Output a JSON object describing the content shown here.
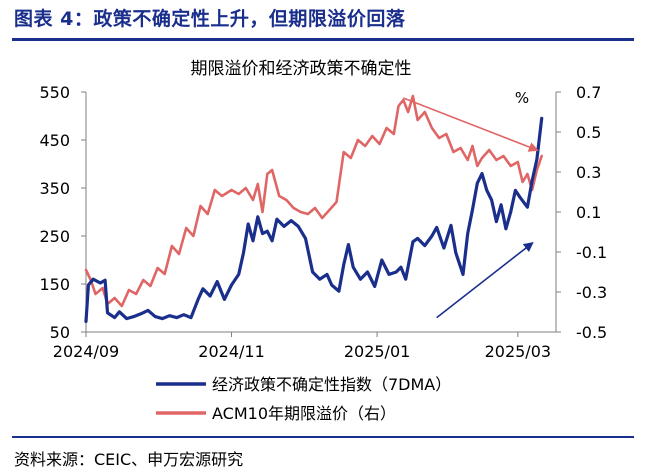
{
  "figure_title": "图表 4：政策不确定性上升，但期限溢价回落",
  "source_note": "资料来源：CEIC、申万宏源研究",
  "colors": {
    "title": "#1a2f8c",
    "series_epu": "#1a2f8c",
    "series_acm": "#e06666",
    "axis": "#7f7f7f"
  },
  "chart_data": {
    "type": "line",
    "title": "期限溢价和经济政策不确定性",
    "y_right_unit": "%",
    "x_ticks": [
      "2024/09",
      "2024/11",
      "2025/01",
      "2025/03"
    ],
    "y_left": {
      "ticks": [
        550,
        450,
        350,
        250,
        150,
        50
      ],
      "lim": [
        50,
        550
      ]
    },
    "y_right": {
      "ticks": [
        "0.7",
        "0.5",
        "0.3",
        "0.1",
        "-0.1",
        "-0.3",
        "-0.5"
      ],
      "lim": [
        -0.5,
        0.7
      ]
    },
    "series": [
      {
        "name": "经济政策不确定性指数（7DMA）",
        "axis": "left",
        "points": [
          [
            "2024-09-01",
            72
          ],
          [
            "2024-09-02",
            148
          ],
          [
            "2024-09-04",
            160
          ],
          [
            "2024-09-07",
            152
          ],
          [
            "2024-09-09",
            158
          ],
          [
            "2024-09-10",
            90
          ],
          [
            "2024-09-13",
            80
          ],
          [
            "2024-09-15",
            92
          ],
          [
            "2024-09-18",
            78
          ],
          [
            "2024-09-21",
            82
          ],
          [
            "2024-09-24",
            88
          ],
          [
            "2024-09-27",
            95
          ],
          [
            "2024-09-30",
            82
          ],
          [
            "2024-10-03",
            78
          ],
          [
            "2024-10-06",
            84
          ],
          [
            "2024-10-09",
            80
          ],
          [
            "2024-10-12",
            86
          ],
          [
            "2024-10-15",
            80
          ],
          [
            "2024-10-18",
            118
          ],
          [
            "2024-10-20",
            140
          ],
          [
            "2024-10-23",
            125
          ],
          [
            "2024-10-26",
            155
          ],
          [
            "2024-10-29",
            118
          ],
          [
            "2024-11-01",
            148
          ],
          [
            "2024-11-04",
            170
          ],
          [
            "2024-11-06",
            215
          ],
          [
            "2024-11-08",
            275
          ],
          [
            "2024-11-10",
            240
          ],
          [
            "2024-11-12",
            290
          ],
          [
            "2024-11-14",
            255
          ],
          [
            "2024-11-16",
            260
          ],
          [
            "2024-11-18",
            240
          ],
          [
            "2024-11-20",
            285
          ],
          [
            "2024-11-23",
            270
          ],
          [
            "2024-11-26",
            282
          ],
          [
            "2024-11-29",
            270
          ],
          [
            "2024-12-02",
            245
          ],
          [
            "2024-12-05",
            175
          ],
          [
            "2024-12-08",
            160
          ],
          [
            "2024-12-11",
            170
          ],
          [
            "2024-12-13",
            148
          ],
          [
            "2024-12-16",
            135
          ],
          [
            "2024-12-18",
            190
          ],
          [
            "2024-12-20",
            232
          ],
          [
            "2024-12-22",
            185
          ],
          [
            "2024-12-25",
            160
          ],
          [
            "2024-12-28",
            175
          ],
          [
            "2024-12-31",
            145
          ],
          [
            "2025-01-03",
            200
          ],
          [
            "2025-01-06",
            170
          ],
          [
            "2025-01-09",
            175
          ],
          [
            "2025-01-11",
            185
          ],
          [
            "2025-01-13",
            160
          ],
          [
            "2025-01-16",
            238
          ],
          [
            "2025-01-18",
            245
          ],
          [
            "2025-01-21",
            230
          ],
          [
            "2025-01-24",
            250
          ],
          [
            "2025-01-26",
            268
          ],
          [
            "2025-01-29",
            225
          ],
          [
            "2025-02-01",
            272
          ],
          [
            "2025-02-03",
            215
          ],
          [
            "2025-02-06",
            170
          ],
          [
            "2025-02-08",
            255
          ],
          [
            "2025-02-10",
            305
          ],
          [
            "2025-02-12",
            360
          ],
          [
            "2025-02-14",
            380
          ],
          [
            "2025-02-16",
            345
          ],
          [
            "2025-02-18",
            325
          ],
          [
            "2025-02-20",
            280
          ],
          [
            "2025-02-22",
            315
          ],
          [
            "2025-02-24",
            265
          ],
          [
            "2025-02-26",
            300
          ],
          [
            "2025-02-28",
            345
          ],
          [
            "2025-03-02",
            330
          ],
          [
            "2025-03-05",
            310
          ],
          [
            "2025-03-07",
            365
          ],
          [
            "2025-03-09",
            410
          ],
          [
            "2025-03-11",
            495
          ]
        ]
      },
      {
        "name": "ACM10年期限溢价（右）",
        "axis": "right",
        "points": [
          [
            "2024-09-01",
            -0.19
          ],
          [
            "2024-09-03",
            -0.24
          ],
          [
            "2024-09-05",
            -0.31
          ],
          [
            "2024-09-08",
            -0.28
          ],
          [
            "2024-09-10",
            -0.36
          ],
          [
            "2024-09-13",
            -0.33
          ],
          [
            "2024-09-16",
            -0.37
          ],
          [
            "2024-09-19",
            -0.29
          ],
          [
            "2024-09-22",
            -0.31
          ],
          [
            "2024-09-25",
            -0.24
          ],
          [
            "2024-09-28",
            -0.27
          ],
          [
            "2024-10-01",
            -0.18
          ],
          [
            "2024-10-04",
            -0.21
          ],
          [
            "2024-10-07",
            -0.07
          ],
          [
            "2024-10-10",
            -0.11
          ],
          [
            "2024-10-13",
            0.02
          ],
          [
            "2024-10-16",
            -0.02
          ],
          [
            "2024-10-19",
            0.13
          ],
          [
            "2024-10-22",
            0.09
          ],
          [
            "2024-10-25",
            0.21
          ],
          [
            "2024-10-28",
            0.18
          ],
          [
            "2024-11-01",
            0.21
          ],
          [
            "2024-11-04",
            0.19
          ],
          [
            "2024-11-07",
            0.22
          ],
          [
            "2024-11-10",
            0.16
          ],
          [
            "2024-11-12",
            0.24
          ],
          [
            "2024-11-14",
            0.1
          ],
          [
            "2024-11-16",
            0.29
          ],
          [
            "2024-11-18",
            0.31
          ],
          [
            "2024-11-21",
            0.18
          ],
          [
            "2024-11-24",
            0.16
          ],
          [
            "2024-11-27",
            0.12
          ],
          [
            "2024-11-30",
            0.1
          ],
          [
            "2024-12-03",
            0.09
          ],
          [
            "2024-12-06",
            0.12
          ],
          [
            "2024-12-09",
            0.07
          ],
          [
            "2024-12-12",
            0.11
          ],
          [
            "2024-12-15",
            0.15
          ],
          [
            "2024-12-18",
            0.4
          ],
          [
            "2024-12-21",
            0.37
          ],
          [
            "2024-12-24",
            0.46
          ],
          [
            "2024-12-27",
            0.43
          ],
          [
            "2024-12-30",
            0.48
          ],
          [
            "2025-01-02",
            0.44
          ],
          [
            "2025-01-05",
            0.52
          ],
          [
            "2025-01-08",
            0.49
          ],
          [
            "2025-01-10",
            0.63
          ],
          [
            "2025-01-12",
            0.66
          ],
          [
            "2025-01-14",
            0.6
          ],
          [
            "2025-01-16",
            0.68
          ],
          [
            "2025-01-18",
            0.56
          ],
          [
            "2025-01-21",
            0.6
          ],
          [
            "2025-01-24",
            0.52
          ],
          [
            "2025-01-27",
            0.47
          ],
          [
            "2025-01-30",
            0.49
          ],
          [
            "2025-02-02",
            0.4
          ],
          [
            "2025-02-05",
            0.42
          ],
          [
            "2025-02-08",
            0.36
          ],
          [
            "2025-02-10",
            0.43
          ],
          [
            "2025-02-12",
            0.33
          ],
          [
            "2025-02-14",
            0.37
          ],
          [
            "2025-02-17",
            0.41
          ],
          [
            "2025-02-20",
            0.36
          ],
          [
            "2025-02-23",
            0.38
          ],
          [
            "2025-02-26",
            0.33
          ],
          [
            "2025-03-01",
            0.35
          ],
          [
            "2025-03-03",
            0.25
          ],
          [
            "2025-03-05",
            0.29
          ],
          [
            "2025-03-07",
            0.21
          ],
          [
            "2025-03-09",
            0.31
          ],
          [
            "2025-03-11",
            0.38
          ]
        ]
      }
    ],
    "annotations": [
      {
        "type": "arrow",
        "color": "#e06666",
        "from": [
          "2025-01-12",
          0.67
        ],
        "to": [
          "2025-03-09",
          0.41
        ]
      },
      {
        "type": "arrow",
        "color": "#1a2f8c",
        "from": [
          "2025-01-26",
          80
        ],
        "to": [
          "2025-03-07",
          235
        ]
      }
    ],
    "legend_position": "bottom"
  }
}
